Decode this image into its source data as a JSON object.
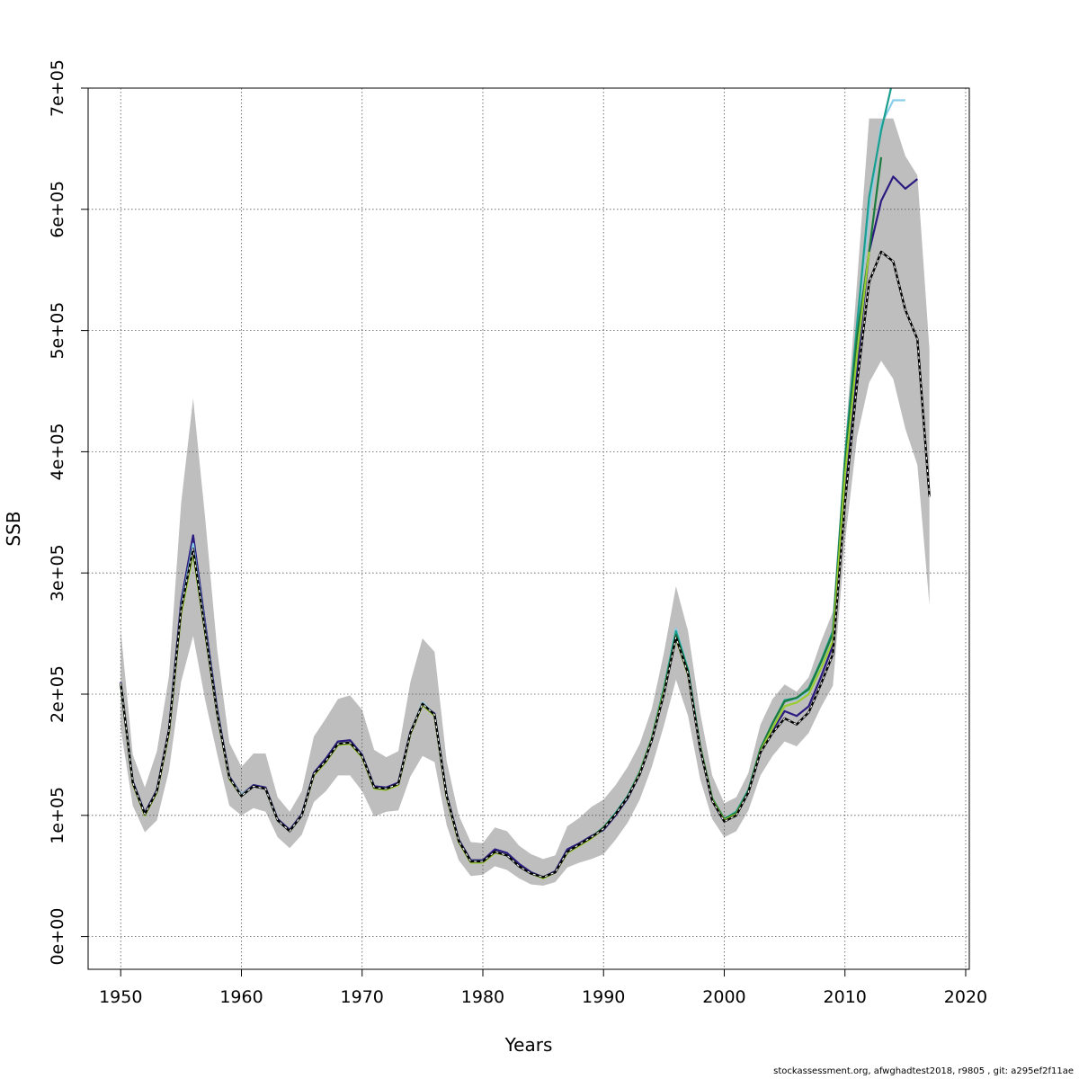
{
  "chart_data": {
    "type": "line",
    "title": "",
    "xlabel": "Years",
    "ylabel": "SSB",
    "xlim": [
      1947.3,
      2020.3
    ],
    "ylim": [
      -27000,
      700000
    ],
    "grid": true,
    "x_ticks": [
      1950,
      1960,
      1970,
      1980,
      1990,
      2000,
      2010,
      2020
    ],
    "x_tick_labels": [
      "1950",
      "1960",
      "1970",
      "1980",
      "1990",
      "2000",
      "2010",
      "2020"
    ],
    "y_ticks": [
      0,
      100000,
      200000,
      300000,
      400000,
      500000,
      600000,
      700000
    ],
    "y_tick_labels": [
      "0e+00",
      "1e+05",
      "2e+05",
      "3e+05",
      "4e+05",
      "5e+05",
      "6e+05",
      "7e+05"
    ],
    "confidence_band": {
      "color": "#bebebe",
      "years": [
        1950,
        1951,
        1952,
        1953,
        1954,
        1955,
        1956,
        1957,
        1958,
        1959,
        1960,
        1961,
        1962,
        1963,
        1964,
        1965,
        1966,
        1967,
        1968,
        1969,
        1970,
        1971,
        1972,
        1973,
        1974,
        1975,
        1976,
        1977,
        1978,
        1979,
        1980,
        1981,
        1982,
        1983,
        1984,
        1985,
        1986,
        1987,
        1988,
        1989,
        1990,
        1991,
        1992,
        1993,
        1994,
        1995,
        1996,
        1997,
        1998,
        1999,
        2000,
        2001,
        2002,
        2003,
        2004,
        2005,
        2006,
        2007,
        2008,
        2009,
        2010,
        2011,
        2012,
        2013,
        2014,
        2015,
        2016,
        2017
      ],
      "upper": [
        253000,
        150000,
        123000,
        153000,
        215000,
        357000,
        444000,
        345000,
        236000,
        160000,
        140000,
        151000,
        151000,
        115000,
        103000,
        120000,
        165000,
        180000,
        196000,
        199000,
        187000,
        154000,
        148000,
        153000,
        210000,
        246000,
        235000,
        145000,
        100000,
        78000,
        77000,
        90000,
        87000,
        75000,
        68000,
        64000,
        67000,
        91000,
        98000,
        107000,
        113000,
        125000,
        140000,
        159000,
        188000,
        234000,
        289000,
        252000,
        185000,
        133000,
        110000,
        115000,
        135000,
        175000,
        196000,
        208000,
        202000,
        214000,
        243000,
        268000,
        405000,
        540000,
        675000,
        675000,
        675000,
        644000,
        628000,
        484000
      ],
      "lower": [
        172000,
        108000,
        86000,
        96000,
        137000,
        210000,
        248000,
        195000,
        150000,
        108000,
        100000,
        106000,
        103000,
        82000,
        73000,
        84000,
        111000,
        120000,
        133000,
        133000,
        120000,
        99000,
        103000,
        104000,
        132000,
        149000,
        144000,
        92000,
        63000,
        50000,
        51000,
        58000,
        55000,
        48000,
        43000,
        42000,
        45000,
        57000,
        61000,
        64000,
        68000,
        80000,
        94000,
        113000,
        140000,
        174000,
        212000,
        182000,
        130000,
        97000,
        82000,
        87000,
        104000,
        133000,
        149000,
        161000,
        157000,
        168000,
        189000,
        207000,
        325000,
        412000,
        457000,
        475000,
        460000,
        419000,
        389000,
        273000
      ]
    },
    "series": [
      {
        "color": "#2b1b80",
        "x": [
          1950,
          1951,
          1952,
          1953,
          1954,
          1955,
          1956,
          1957,
          1958,
          1959,
          1960,
          1961,
          1962,
          1963,
          1964,
          1965,
          1966,
          1967,
          1968,
          1969,
          1970,
          1971,
          1972,
          1973,
          1974,
          1975,
          1976,
          1977,
          1978,
          1979,
          1980,
          1981,
          1982,
          1983,
          1984,
          1985,
          1986,
          1987,
          1988,
          1989,
          1990,
          1991,
          1992,
          1993,
          1994,
          1995,
          1996,
          1997,
          1998,
          1999,
          2000,
          2001,
          2002,
          2003,
          2004,
          2005,
          2006,
          2007,
          2008,
          2009,
          2010,
          2011,
          2012,
          2013,
          2014,
          2015,
          2016
        ],
        "values": [
          210000,
          128000,
          102000,
          121000,
          171000,
          276000,
          331000,
          258000,
          187000,
          132000,
          117000,
          125000,
          123000,
          97000,
          88000,
          101000,
          135000,
          147000,
          161000,
          162000,
          150000,
          124000,
          123000,
          127000,
          169000,
          191000,
          184000,
          117000,
          80000,
          63000,
          63000,
          72000,
          69000,
          60000,
          53000,
          49000,
          54000,
          72000,
          77000,
          83000,
          88000,
          100000,
          114000,
          134000,
          162000,
          201000,
          248000,
          218000,
          155000,
          112000,
          95000,
          101000,
          119000,
          152000,
          170000,
          186000,
          182000,
          190000,
          214000,
          240000,
          363000,
          470000,
          565000,
          607000,
          627000,
          617000,
          625000
        ]
      },
      {
        "color": "#87ceeb",
        "x": [
          1950,
          1951,
          1952,
          1953,
          1954,
          1955,
          1956,
          1957,
          1958,
          1959,
          1960,
          1961,
          1962,
          1963,
          1964,
          1965,
          1966,
          1967,
          1968,
          1969,
          1970,
          1971,
          1972,
          1973,
          1974,
          1975,
          1976,
          1977,
          1978,
          1979,
          1980,
          1981,
          1982,
          1983,
          1984,
          1985,
          1986,
          1987,
          1988,
          1989,
          1990,
          1991,
          1992,
          1993,
          1994,
          1995,
          1996,
          1997,
          1998,
          1999,
          2000,
          2001,
          2002,
          2003,
          2004,
          2005,
          2006,
          2007,
          2008,
          2009,
          2010,
          2011,
          2012,
          2013,
          2014,
          2015
        ],
        "values": [
          209000,
          127000,
          101000,
          120000,
          170000,
          272000,
          324000,
          254000,
          185000,
          131000,
          117000,
          124000,
          122000,
          96000,
          87000,
          100000,
          134000,
          145000,
          159000,
          160000,
          149000,
          123000,
          122000,
          126000,
          168000,
          193000,
          183000,
          116000,
          79000,
          62000,
          62000,
          70000,
          67000,
          58000,
          52000,
          49000,
          53000,
          70000,
          76000,
          82000,
          90000,
          102000,
          115000,
          135000,
          163000,
          203000,
          254000,
          220000,
          157000,
          114000,
          97000,
          103000,
          121000,
          155000,
          176000,
          194000,
          196000,
          203000,
          225000,
          250000,
          390000,
          500000,
          600000,
          670000,
          690000,
          690000
        ]
      },
      {
        "color": "#1a9e8e",
        "x": [
          1950,
          1951,
          1952,
          1953,
          1954,
          1955,
          1956,
          1957,
          1958,
          1959,
          1960,
          1961,
          1962,
          1963,
          1964,
          1965,
          1966,
          1967,
          1968,
          1969,
          1970,
          1971,
          1972,
          1973,
          1974,
          1975,
          1976,
          1977,
          1978,
          1979,
          1980,
          1981,
          1982,
          1983,
          1984,
          1985,
          1986,
          1987,
          1988,
          1989,
          1990,
          1991,
          1992,
          1993,
          1994,
          1995,
          1996,
          1997,
          1998,
          1999,
          2000,
          2001,
          2002,
          2003,
          2004,
          2005,
          2006,
          2007,
          2008,
          2009,
          2010,
          2011,
          2012,
          2013,
          2014
        ],
        "values": [
          209000,
          127000,
          101000,
          120000,
          169000,
          270000,
          320000,
          252000,
          184000,
          131000,
          116000,
          124000,
          122000,
          96000,
          87000,
          100000,
          134000,
          145000,
          159000,
          160000,
          149000,
          123000,
          122000,
          126000,
          168000,
          192000,
          183000,
          116000,
          79000,
          62000,
          62000,
          70000,
          67000,
          58000,
          52000,
          49000,
          53000,
          70000,
          76000,
          82000,
          90000,
          102000,
          116000,
          136000,
          164000,
          205000,
          252000,
          220000,
          157000,
          114000,
          97000,
          103000,
          121000,
          155000,
          176000,
          195000,
          197000,
          205000,
          227000,
          252000,
          395000,
          505000,
          610000,
          665000,
          708000
        ]
      },
      {
        "color": "#1b7a3e",
        "x": [
          1950,
          1951,
          1952,
          1953,
          1954,
          1955,
          1956,
          1957,
          1958,
          1959,
          1960,
          1961,
          1962,
          1963,
          1964,
          1965,
          1966,
          1967,
          1968,
          1969,
          1970,
          1971,
          1972,
          1973,
          1974,
          1975,
          1976,
          1977,
          1978,
          1979,
          1980,
          1981,
          1982,
          1983,
          1984,
          1985,
          1986,
          1987,
          1988,
          1989,
          1990,
          1991,
          1992,
          1993,
          1994,
          1995,
          1996,
          1997,
          1998,
          1999,
          2000,
          2001,
          2002,
          2003,
          2004,
          2005,
          2006,
          2007,
          2008,
          2009,
          2010,
          2011,
          2012,
          2013
        ],
        "values": [
          209000,
          127000,
          101000,
          120000,
          169000,
          268000,
          318000,
          251000,
          184000,
          131000,
          116000,
          124000,
          122000,
          96000,
          87000,
          100000,
          134000,
          145000,
          159000,
          160000,
          149000,
          123000,
          122000,
          126000,
          168000,
          192000,
          183000,
          116000,
          79000,
          62000,
          62000,
          70000,
          67000,
          58000,
          52000,
          49000,
          53000,
          70000,
          76000,
          82000,
          90000,
          101000,
          115000,
          135000,
          163000,
          203000,
          249000,
          219000,
          157000,
          114000,
          97000,
          102000,
          120000,
          155000,
          176000,
          194000,
          197000,
          204000,
          226000,
          250000,
          390000,
          495000,
          565000,
          643000
        ]
      },
      {
        "color": "#9acd32",
        "x": [
          1950,
          1951,
          1952,
          1953,
          1954,
          1955,
          1956,
          1957,
          1958,
          1959,
          1960,
          1961,
          1962,
          1963,
          1964,
          1965,
          1966,
          1967,
          1968,
          1969,
          1970,
          1971,
          1972,
          1973,
          1974,
          1975,
          1976,
          1977,
          1978,
          1979,
          1980,
          1981,
          1982,
          1983,
          1984,
          1985,
          1986,
          1987,
          1988,
          1989,
          1990,
          1991,
          1992,
          1993,
          1994,
          1995,
          1996,
          1997,
          1998,
          1999,
          2000,
          2001,
          2002,
          2003,
          2004,
          2005,
          2006,
          2007,
          2008,
          2009,
          2010,
          2011,
          2012
        ],
        "values": [
          209000,
          126000,
          100000,
          119000,
          168000,
          266000,
          316000,
          250000,
          183000,
          130000,
          116000,
          124000,
          122000,
          96000,
          87000,
          100000,
          133000,
          144000,
          158000,
          159000,
          148000,
          122000,
          121000,
          125000,
          167000,
          191000,
          182000,
          115000,
          78000,
          61000,
          61000,
          69000,
          67000,
          58000,
          52000,
          48000,
          53000,
          69000,
          75000,
          81000,
          89000,
          101000,
          115000,
          135000,
          163000,
          202000,
          246000,
          216000,
          156000,
          113000,
          96000,
          101000,
          119000,
          153000,
          172000,
          190000,
          193000,
          200000,
          221000,
          244000,
          380000,
          480000,
          565000
        ]
      },
      {
        "color": "#000000",
        "dashed": true,
        "x": [
          1950,
          1951,
          1952,
          1953,
          1954,
          1955,
          1956,
          1957,
          1958,
          1959,
          1960,
          1961,
          1962,
          1963,
          1964,
          1965,
          1966,
          1967,
          1968,
          1969,
          1970,
          1971,
          1972,
          1973,
          1974,
          1975,
          1976,
          1977,
          1978,
          1979,
          1980,
          1981,
          1982,
          1983,
          1984,
          1985,
          1986,
          1987,
          1988,
          1989,
          1990,
          1991,
          1992,
          1993,
          1994,
          1995,
          1996,
          1997,
          1998,
          1999,
          2000,
          2001,
          2002,
          2003,
          2004,
          2005,
          2006,
          2007,
          2008,
          2009,
          2010,
          2011,
          2012,
          2013,
          2014,
          2015,
          2016,
          2017
        ],
        "values": [
          209000,
          127000,
          101000,
          120000,
          170000,
          270000,
          320000,
          252000,
          184000,
          131000,
          116000,
          124000,
          122000,
          96000,
          87000,
          100000,
          134000,
          145000,
          159000,
          160000,
          149000,
          123000,
          122000,
          126000,
          168000,
          192000,
          183000,
          116000,
          79000,
          62000,
          62000,
          70000,
          67000,
          58000,
          52000,
          49000,
          53000,
          70000,
          76000,
          82000,
          89000,
          101000,
          115000,
          134000,
          162000,
          200000,
          247000,
          217000,
          155000,
          112000,
          95000,
          100000,
          119000,
          152000,
          168000,
          180000,
          175000,
          185000,
          208000,
          233000,
          358000,
          456000,
          540000,
          565000,
          557000,
          517000,
          493000,
          363000
        ]
      }
    ]
  },
  "footer": {
    "text": "stockassessment.org, afwghadtest2018, r9805 , git: a295ef2f11ae"
  }
}
